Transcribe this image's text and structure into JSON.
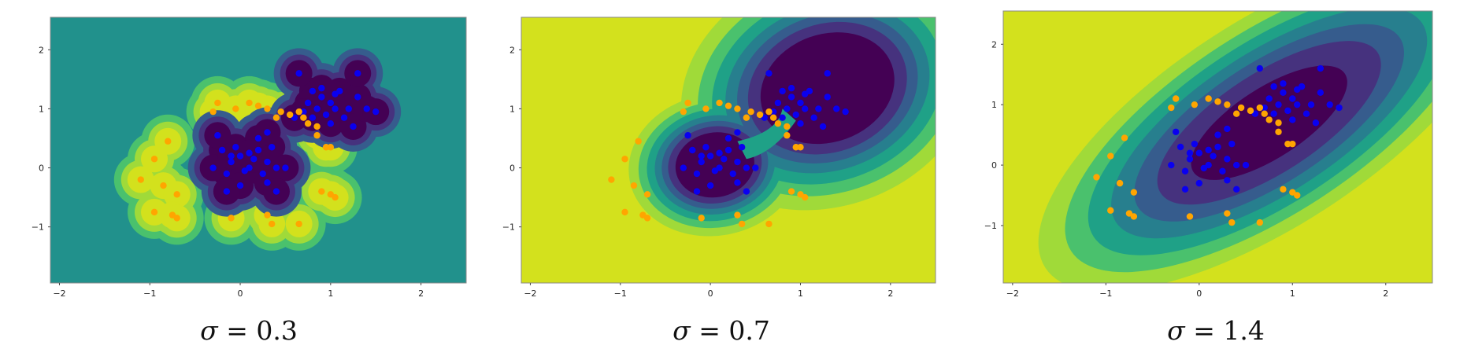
{
  "colors": {
    "class_a_points": "#0a00f0",
    "class_b_points": "#ffa500",
    "contour_levels": [
      "#440154",
      "#46327e",
      "#365c8d",
      "#277f8e",
      "#1fa187",
      "#4ac16d",
      "#a0da39",
      "#d3e11d"
    ]
  },
  "chart_data": [
    {
      "type": "scatter",
      "title": "σ = 0.3",
      "caption_symbol": "σ",
      "caption_value": "= 0.3",
      "sigma": 0.3,
      "xlim": [
        -2.1,
        2.5
      ],
      "ylim": [
        -1.95,
        2.55
      ],
      "xticks": [
        "−2",
        "−1",
        "0",
        "1",
        "2"
      ],
      "xtick_values": [
        -2,
        -1,
        0,
        1,
        2
      ],
      "yticks": [
        "2",
        "1",
        "0",
        "−1"
      ],
      "ytick_values": [
        2,
        1,
        0,
        -1
      ],
      "background": "#21918c",
      "series": [
        {
          "class": "blue",
          "points": [
            [
              -0.2,
              0.3
            ],
            [
              -0.1,
              0.1
            ],
            [
              0.0,
              0.2
            ],
            [
              0.1,
              0.0
            ],
            [
              0.2,
              0.3
            ],
            [
              0.3,
              0.1
            ],
            [
              -0.15,
              -0.1
            ],
            [
              0.05,
              -0.05
            ],
            [
              0.25,
              -0.1
            ],
            [
              0.4,
              0.0
            ],
            [
              -0.3,
              0.0
            ],
            [
              0.15,
              0.15
            ],
            [
              0.3,
              -0.25
            ],
            [
              -0.05,
              0.35
            ],
            [
              0.35,
              0.35
            ],
            [
              -0.25,
              0.55
            ],
            [
              0.2,
              0.5
            ],
            [
              0.5,
              0.0
            ],
            [
              0.0,
              -0.3
            ],
            [
              -0.15,
              -0.4
            ],
            [
              0.4,
              -0.4
            ],
            [
              0.3,
              0.6
            ],
            [
              0.1,
              0.25
            ],
            [
              -0.1,
              0.2
            ],
            [
              0.8,
              1.3
            ],
            [
              0.9,
              1.2
            ],
            [
              1.0,
              1.1
            ],
            [
              1.1,
              1.3
            ],
            [
              0.85,
              1.0
            ],
            [
              0.95,
              0.9
            ],
            [
              1.05,
              1.25
            ],
            [
              1.2,
              1.0
            ],
            [
              0.75,
              1.1
            ],
            [
              1.15,
              0.85
            ],
            [
              0.9,
              1.35
            ],
            [
              1.3,
              1.2
            ],
            [
              0.7,
              0.95
            ],
            [
              1.0,
              0.75
            ],
            [
              1.25,
              0.7
            ],
            [
              1.4,
              1.0
            ],
            [
              0.65,
              1.6
            ],
            [
              1.3,
              1.6
            ],
            [
              1.5,
              0.95
            ],
            [
              0.8,
              0.85
            ],
            [
              1.05,
              1.0
            ],
            [
              0.6,
              0.85
            ]
          ]
        },
        {
          "class": "orange",
          "points": [
            [
              -0.25,
              1.1
            ],
            [
              -0.3,
              0.95
            ],
            [
              -0.05,
              1.0
            ],
            [
              0.1,
              1.1
            ],
            [
              0.2,
              1.05
            ],
            [
              0.3,
              1.0
            ],
            [
              0.4,
              0.85
            ],
            [
              0.45,
              0.95
            ],
            [
              0.55,
              0.9
            ],
            [
              0.7,
              0.85
            ],
            [
              0.65,
              0.95
            ],
            [
              0.75,
              0.75
            ],
            [
              0.85,
              0.7
            ],
            [
              0.95,
              0.35
            ],
            [
              1.0,
              0.35
            ],
            [
              0.85,
              0.55
            ],
            [
              -0.8,
              0.45
            ],
            [
              -0.95,
              0.15
            ],
            [
              -1.1,
              -0.2
            ],
            [
              -0.85,
              -0.3
            ],
            [
              -0.7,
              -0.45
            ],
            [
              -0.95,
              -0.75
            ],
            [
              -0.75,
              -0.8
            ],
            [
              -0.7,
              -0.85
            ],
            [
              -0.1,
              -0.85
            ],
            [
              0.3,
              -0.8
            ],
            [
              0.35,
              -0.95
            ],
            [
              0.65,
              -0.95
            ],
            [
              0.9,
              -0.4
            ],
            [
              1.0,
              -0.45
            ],
            [
              1.05,
              -0.5
            ]
          ]
        }
      ]
    },
    {
      "type": "scatter",
      "title": "σ = 0.7",
      "caption_symbol": "σ",
      "caption_value": "= 0.7",
      "sigma": 0.7,
      "xlim": [
        -2.1,
        2.5
      ],
      "ylim": [
        -1.95,
        2.55
      ],
      "xticks": [
        "−2",
        "−1",
        "0",
        "1",
        "2"
      ],
      "xtick_values": [
        -2,
        -1,
        0,
        1,
        2
      ],
      "yticks": [
        "2",
        "1",
        "0",
        "−1"
      ],
      "ytick_values": [
        2,
        1,
        0,
        -1
      ],
      "background": "#d3e11d",
      "series": [
        {
          "class": "blue",
          "points": [
            [
              -0.2,
              0.3
            ],
            [
              -0.1,
              0.1
            ],
            [
              0.0,
              0.2
            ],
            [
              0.1,
              0.0
            ],
            [
              0.2,
              0.3
            ],
            [
              0.3,
              0.1
            ],
            [
              -0.15,
              -0.1
            ],
            [
              0.05,
              -0.05
            ],
            [
              0.25,
              -0.1
            ],
            [
              0.4,
              0.0
            ],
            [
              -0.3,
              0.0
            ],
            [
              0.15,
              0.15
            ],
            [
              0.3,
              -0.25
            ],
            [
              -0.05,
              0.35
            ],
            [
              0.35,
              0.35
            ],
            [
              -0.25,
              0.55
            ],
            [
              0.2,
              0.5
            ],
            [
              0.5,
              0.0
            ],
            [
              0.0,
              -0.3
            ],
            [
              -0.15,
              -0.4
            ],
            [
              0.4,
              -0.4
            ],
            [
              0.3,
              0.6
            ],
            [
              0.1,
              0.25
            ],
            [
              -0.1,
              0.2
            ],
            [
              0.8,
              1.3
            ],
            [
              0.9,
              1.2
            ],
            [
              1.0,
              1.1
            ],
            [
              1.1,
              1.3
            ],
            [
              0.85,
              1.0
            ],
            [
              0.95,
              0.9
            ],
            [
              1.05,
              1.25
            ],
            [
              1.2,
              1.0
            ],
            [
              0.75,
              1.1
            ],
            [
              1.15,
              0.85
            ],
            [
              0.9,
              1.35
            ],
            [
              1.3,
              1.2
            ],
            [
              0.7,
              0.95
            ],
            [
              1.0,
              0.75
            ],
            [
              1.25,
              0.7
            ],
            [
              1.4,
              1.0
            ],
            [
              0.65,
              1.6
            ],
            [
              1.3,
              1.6
            ],
            [
              1.5,
              0.95
            ],
            [
              0.8,
              0.85
            ],
            [
              1.05,
              1.0
            ],
            [
              0.6,
              0.85
            ]
          ]
        },
        {
          "class": "orange",
          "points": [
            [
              -0.25,
              1.1
            ],
            [
              -0.3,
              0.95
            ],
            [
              -0.05,
              1.0
            ],
            [
              0.1,
              1.1
            ],
            [
              0.2,
              1.05
            ],
            [
              0.3,
              1.0
            ],
            [
              0.4,
              0.85
            ],
            [
              0.45,
              0.95
            ],
            [
              0.55,
              0.9
            ],
            [
              0.7,
              0.85
            ],
            [
              0.65,
              0.95
            ],
            [
              0.75,
              0.75
            ],
            [
              0.85,
              0.7
            ],
            [
              0.95,
              0.35
            ],
            [
              1.0,
              0.35
            ],
            [
              0.85,
              0.55
            ],
            [
              -0.8,
              0.45
            ],
            [
              -0.95,
              0.15
            ],
            [
              -1.1,
              -0.2
            ],
            [
              -0.85,
              -0.3
            ],
            [
              -0.7,
              -0.45
            ],
            [
              -0.95,
              -0.75
            ],
            [
              -0.75,
              -0.8
            ],
            [
              -0.7,
              -0.85
            ],
            [
              -0.1,
              -0.85
            ],
            [
              0.3,
              -0.8
            ],
            [
              0.35,
              -0.95
            ],
            [
              0.65,
              -0.95
            ],
            [
              0.9,
              -0.4
            ],
            [
              1.0,
              -0.45
            ],
            [
              1.05,
              -0.5
            ]
          ]
        }
      ]
    },
    {
      "type": "scatter",
      "title": "σ = 1.4",
      "caption_symbol": "σ",
      "caption_value": "= 1.4",
      "sigma": 1.4,
      "xlim": [
        -2.1,
        2.5
      ],
      "ylim": [
        -1.95,
        2.55
      ],
      "xticks": [
        "−2",
        "−1",
        "0",
        "1",
        "2"
      ],
      "xtick_values": [
        -2,
        -1,
        0,
        1,
        2
      ],
      "yticks": [
        "2",
        "1",
        "0",
        "−1"
      ],
      "ytick_values": [
        2,
        1,
        0,
        -1
      ],
      "background": "#d3e11d",
      "series": [
        {
          "class": "blue",
          "points": [
            [
              -0.2,
              0.3
            ],
            [
              -0.1,
              0.1
            ],
            [
              0.0,
              0.2
            ],
            [
              0.1,
              0.0
            ],
            [
              0.2,
              0.3
            ],
            [
              0.3,
              0.1
            ],
            [
              -0.15,
              -0.1
            ],
            [
              0.05,
              -0.05
            ],
            [
              0.25,
              -0.1
            ],
            [
              0.4,
              0.0
            ],
            [
              -0.3,
              0.0
            ],
            [
              0.15,
              0.15
            ],
            [
              0.3,
              -0.25
            ],
            [
              -0.05,
              0.35
            ],
            [
              0.35,
              0.35
            ],
            [
              -0.25,
              0.55
            ],
            [
              0.2,
              0.5
            ],
            [
              0.5,
              0.0
            ],
            [
              0.0,
              -0.3
            ],
            [
              -0.15,
              -0.4
            ],
            [
              0.4,
              -0.4
            ],
            [
              0.3,
              0.6
            ],
            [
              0.1,
              0.25
            ],
            [
              -0.1,
              0.2
            ],
            [
              0.8,
              1.3
            ],
            [
              0.9,
              1.2
            ],
            [
              1.0,
              1.1
            ],
            [
              1.1,
              1.3
            ],
            [
              0.85,
              1.0
            ],
            [
              0.95,
              0.9
            ],
            [
              1.05,
              1.25
            ],
            [
              1.2,
              1.0
            ],
            [
              0.75,
              1.1
            ],
            [
              1.15,
              0.85
            ],
            [
              0.9,
              1.35
            ],
            [
              1.3,
              1.2
            ],
            [
              0.7,
              0.95
            ],
            [
              1.0,
              0.75
            ],
            [
              1.25,
              0.7
            ],
            [
              1.4,
              1.0
            ],
            [
              0.65,
              1.6
            ],
            [
              1.3,
              1.6
            ],
            [
              1.5,
              0.95
            ],
            [
              0.8,
              0.85
            ],
            [
              1.05,
              1.0
            ],
            [
              0.6,
              0.85
            ]
          ]
        },
        {
          "class": "orange",
          "points": [
            [
              -0.25,
              1.1
            ],
            [
              -0.3,
              0.95
            ],
            [
              -0.05,
              1.0
            ],
            [
              0.1,
              1.1
            ],
            [
              0.2,
              1.05
            ],
            [
              0.3,
              1.0
            ],
            [
              0.4,
              0.85
            ],
            [
              0.45,
              0.95
            ],
            [
              0.55,
              0.9
            ],
            [
              0.7,
              0.85
            ],
            [
              0.65,
              0.95
            ],
            [
              0.75,
              0.75
            ],
            [
              0.85,
              0.7
            ],
            [
              0.95,
              0.35
            ],
            [
              1.0,
              0.35
            ],
            [
              0.85,
              0.55
            ],
            [
              -0.8,
              0.45
            ],
            [
              -0.95,
              0.15
            ],
            [
              -1.1,
              -0.2
            ],
            [
              -0.85,
              -0.3
            ],
            [
              -0.7,
              -0.45
            ],
            [
              -0.95,
              -0.75
            ],
            [
              -0.75,
              -0.8
            ],
            [
              -0.7,
              -0.85
            ],
            [
              -0.1,
              -0.85
            ],
            [
              0.3,
              -0.8
            ],
            [
              0.35,
              -0.95
            ],
            [
              0.65,
              -0.95
            ],
            [
              0.9,
              -0.4
            ],
            [
              1.0,
              -0.45
            ],
            [
              1.05,
              -0.5
            ]
          ]
        }
      ]
    }
  ]
}
